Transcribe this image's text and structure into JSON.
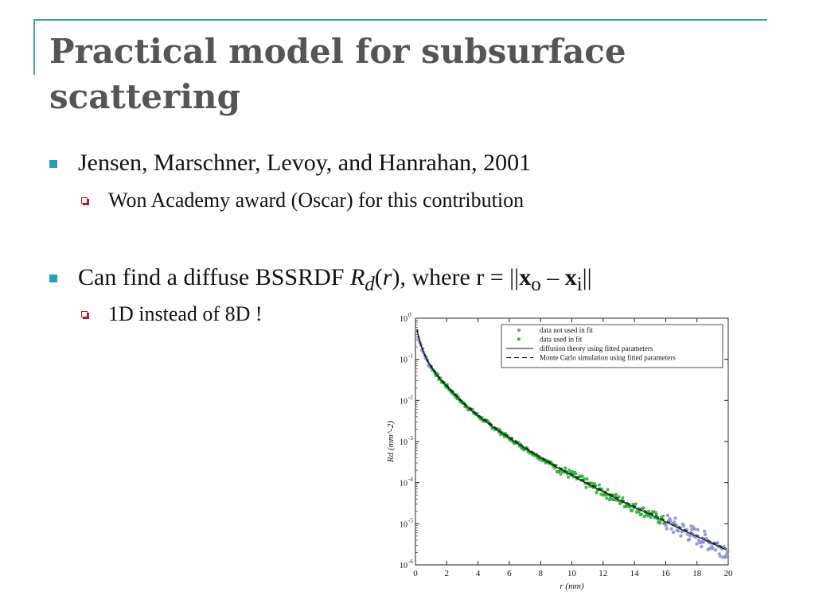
{
  "slide": {
    "title": "Practical model for subsurface scattering",
    "bullets": [
      {
        "text": "Jensen, Marschner, Levoy, and Hanrahan, 2001",
        "sub": "Won Academy award (Oscar) for this contribution"
      },
      {
        "text_prefix": "Can find a diffuse BSSRDF ",
        "Rd_R": "R",
        "Rd_sub": "d",
        "paren_open": "(",
        "r_var": "r",
        "paren_close": "), where r = ||",
        "x_o": "x",
        "o_sub": "o",
        "minus": " – ",
        "x_i": "x",
        "i_sub": "i",
        "end": "||",
        "sub": "1D instead of 8D !"
      }
    ],
    "accent_color": "#3aa5b6",
    "bullet_color": "#2e9bb5",
    "subbullet_color": "#b0182b"
  },
  "chart_data": {
    "type": "scatter",
    "title": "",
    "xlabel": "r (mm)",
    "ylabel": "Rd (mm^-2)",
    "x_ticks": [
      "0",
      "2",
      "4",
      "6",
      "8",
      "10",
      "12",
      "14",
      "16",
      "18",
      "20"
    ],
    "xlim": [
      0,
      20
    ],
    "y_scale": "log",
    "ylim": [
      1e-06,
      1
    ],
    "y_ticks": [
      {
        "base": "10",
        "exp": "0"
      },
      {
        "base": "10",
        "exp": "-1"
      },
      {
        "base": "10",
        "exp": "-2"
      },
      {
        "base": "10",
        "exp": "-3"
      },
      {
        "base": "10",
        "exp": "-4"
      },
      {
        "base": "10",
        "exp": "-5"
      },
      {
        "base": "10",
        "exp": "-6"
      }
    ],
    "legend_position": "top-right",
    "legend": [
      {
        "label": "data not used in fit",
        "style": "marker",
        "color": "#8a8fd0"
      },
      {
        "label": "data used in fit",
        "style": "marker",
        "color": "#2ab03a"
      },
      {
        "label": "diffusion theory using fitted parameters",
        "style": "solid",
        "color": "#111111"
      },
      {
        "label": "Monte Carlo simulation using fitted parameters",
        "style": "dashed",
        "color": "#111111"
      }
    ],
    "series": [
      {
        "name": "data not used in fit",
        "color": "#8a8fd0",
        "x_ranges": [
          [
            0,
            1
          ],
          [
            16,
            20
          ]
        ]
      },
      {
        "name": "data used in fit",
        "color": "#2ab03a",
        "x_range": [
          1,
          16
        ]
      },
      {
        "name": "diffusion theory using fitted parameters",
        "color": "#111111",
        "x": [
          0.1,
          0.3,
          0.5,
          0.8,
          1,
          1.5,
          2,
          3,
          4,
          5,
          6,
          7,
          8,
          9,
          10,
          11,
          12,
          13,
          14,
          15,
          16,
          17,
          18,
          19,
          20
        ],
        "y": [
          0.5,
          0.25,
          0.15,
          0.085,
          0.065,
          0.035,
          0.022,
          0.0088,
          0.0042,
          0.0022,
          0.0012,
          0.00068,
          0.0004,
          0.00024,
          0.00015,
          9.3e-05,
          6e-05,
          3.8e-05,
          2.5e-05,
          1.7e-05,
          1.1e-05,
          7.3e-06,
          4.9e-06,
          3.3e-06,
          2.2e-06
        ]
      },
      {
        "name": "Monte Carlo simulation using fitted parameters",
        "color": "#111111"
      }
    ]
  }
}
